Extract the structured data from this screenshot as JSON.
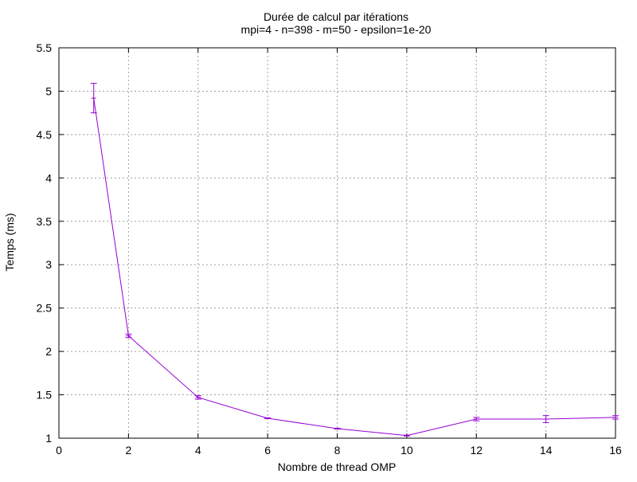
{
  "chart_data": {
    "type": "line",
    "title": "Durée de calcul par itérations",
    "subtitle": "mpi=4 - n=398 - m=50 - epsilon=1e-20",
    "xlabel": "Nombre de thread OMP",
    "ylabel": "Temps (ms)",
    "xlim": [
      0,
      16
    ],
    "ylim": [
      1,
      5.5
    ],
    "xticks": [
      0,
      2,
      4,
      6,
      8,
      10,
      12,
      14,
      16
    ],
    "xtick_labels": [
      "0",
      "2",
      "4",
      "6",
      "8",
      "10",
      "12",
      "14",
      "16"
    ],
    "yticks": [
      1,
      1.5,
      2,
      2.5,
      3,
      3.5,
      4,
      4.5,
      5,
      5.5
    ],
    "ytick_labels": [
      "1",
      "1.5",
      "2",
      "2.5",
      "3",
      "3.5",
      "4",
      "4.5",
      "5",
      "5.5"
    ],
    "grid": true,
    "error_bars": true,
    "series": [
      {
        "color": "#9400d3",
        "points": [
          {
            "x": 1,
            "y": 4.92,
            "ymin": 4.75,
            "ymax": 5.09
          },
          {
            "x": 2,
            "y": 2.18,
            "ymin": 2.16,
            "ymax": 2.2
          },
          {
            "x": 4,
            "y": 1.47,
            "ymin": 1.45,
            "ymax": 1.49
          },
          {
            "x": 6,
            "y": 1.23,
            "ymin": 1.225,
            "ymax": 1.235
          },
          {
            "x": 8,
            "y": 1.11,
            "ymin": 1.105,
            "ymax": 1.115
          },
          {
            "x": 10,
            "y": 1.03,
            "ymin": 1.025,
            "ymax": 1.035
          },
          {
            "x": 12,
            "y": 1.22,
            "ymin": 1.2,
            "ymax": 1.24
          },
          {
            "x": 14,
            "y": 1.22,
            "ymin": 1.18,
            "ymax": 1.26
          },
          {
            "x": 16,
            "y": 1.24,
            "ymin": 1.22,
            "ymax": 1.26
          }
        ]
      }
    ]
  }
}
